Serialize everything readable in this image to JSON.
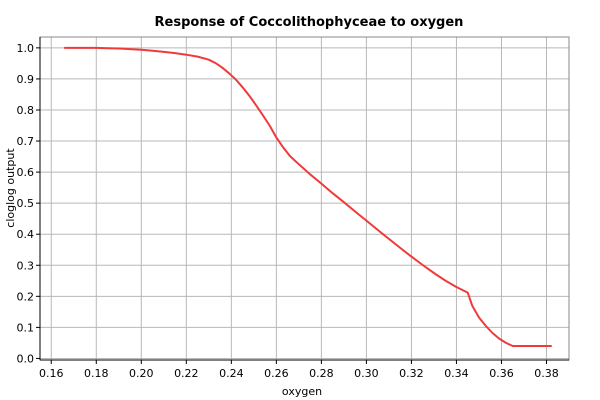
{
  "chart_data": {
    "type": "line",
    "title": "Response of Coccolithophyceae to oxygen",
    "xlabel": "oxygen",
    "ylabel": "cloglog output",
    "xlim": [
      0.155,
      0.39
    ],
    "ylim": [
      -0.005,
      1.035
    ],
    "x_ticks": [
      "0.16",
      "0.18",
      "0.20",
      "0.22",
      "0.24",
      "0.26",
      "0.28",
      "0.30",
      "0.32",
      "0.34",
      "0.36",
      "0.38"
    ],
    "y_ticks": [
      "0.0",
      "0.1",
      "0.2",
      "0.3",
      "0.4",
      "0.5",
      "0.6",
      "0.7",
      "0.8",
      "0.9",
      "1.0"
    ],
    "grid": true,
    "colors": {
      "line": "#f03a3a",
      "grid": "#b8b8b8",
      "axis": "#000000"
    },
    "series": [
      {
        "x": [
          0.166,
          0.17,
          0.175,
          0.18,
          0.185,
          0.19,
          0.195,
          0.2,
          0.205,
          0.21,
          0.215,
          0.22,
          0.225,
          0.23,
          0.233,
          0.236,
          0.239,
          0.242,
          0.245,
          0.248,
          0.251,
          0.254,
          0.257,
          0.26,
          0.263,
          0.266,
          0.27,
          0.275,
          0.28,
          0.285,
          0.29,
          0.295,
          0.3,
          0.305,
          0.31,
          0.315,
          0.32,
          0.325,
          0.33,
          0.335,
          0.34,
          0.345,
          0.347,
          0.35,
          0.353,
          0.356,
          0.359,
          0.362,
          0.365,
          0.37,
          0.375,
          0.38,
          0.382
        ],
        "y": [
          1.0,
          1.0,
          1.0,
          1.0,
          0.999,
          0.998,
          0.996,
          0.994,
          0.991,
          0.987,
          0.983,
          0.978,
          0.972,
          0.962,
          0.951,
          0.936,
          0.918,
          0.898,
          0.873,
          0.846,
          0.815,
          0.783,
          0.75,
          0.711,
          0.68,
          0.652,
          0.625,
          0.593,
          0.563,
          0.532,
          0.503,
          0.473,
          0.444,
          0.414,
          0.385,
          0.356,
          0.328,
          0.301,
          0.275,
          0.251,
          0.23,
          0.212,
          0.17,
          0.132,
          0.105,
          0.082,
          0.064,
          0.05,
          0.04,
          0.04,
          0.04,
          0.04,
          0.04
        ]
      }
    ]
  }
}
